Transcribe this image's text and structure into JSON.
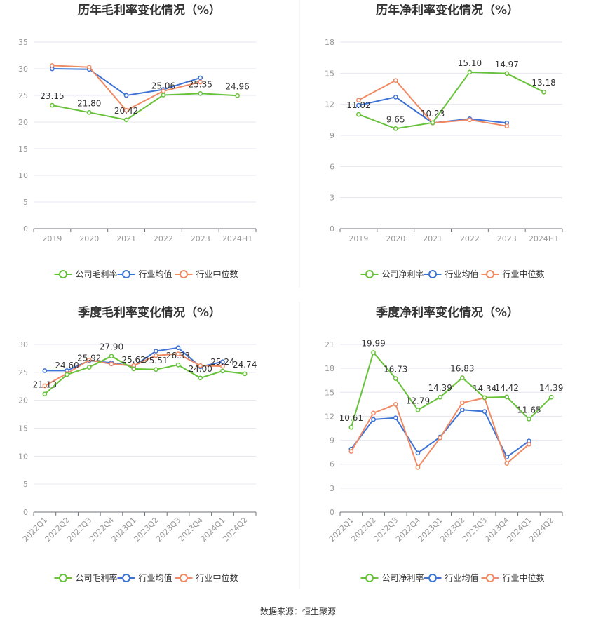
{
  "colors": {
    "company": "#67c23a",
    "industry_avg": "#3d73d6",
    "industry_median": "#f08a64"
  },
  "legend_labels_gross": [
    "公司毛利率",
    "行业均值",
    "行业中位数"
  ],
  "legend_labels_net": [
    "公司净利率",
    "行业均值",
    "行业中位数"
  ],
  "source_text": "数据来源：恒生聚源",
  "chart_data": [
    {
      "type": "line",
      "title": "历年毛利率变化情况（%）",
      "categories": [
        "2019",
        "2020",
        "2021",
        "2022",
        "2023",
        "2024H1"
      ],
      "yticks": [
        0,
        5,
        10,
        15,
        20,
        25,
        30,
        35
      ],
      "ylim": [
        0,
        35
      ],
      "rotate_xticks": false,
      "legend": "bottom-center",
      "grid": true,
      "series": [
        {
          "name": "公司毛利率",
          "values": [
            23.15,
            21.8,
            20.42,
            25.06,
            25.35,
            24.96
          ],
          "labels": [
            "23.15",
            "21.80",
            "20.42",
            "25.06",
            "25.35",
            "24.96"
          ]
        },
        {
          "name": "行业均值",
          "values": [
            30.0,
            29.9,
            25.0,
            26.1,
            28.3,
            null
          ]
        },
        {
          "name": "行业中位数",
          "values": [
            30.6,
            30.3,
            22.2,
            25.8,
            27.5,
            null
          ]
        }
      ]
    },
    {
      "type": "line",
      "title": "历年净利率变化情况（%）",
      "categories": [
        "2019",
        "2020",
        "2021",
        "2022",
        "2023",
        "2024H1"
      ],
      "yticks": [
        0,
        3,
        6,
        9,
        12,
        15,
        18
      ],
      "ylim": [
        0,
        18
      ],
      "rotate_xticks": false,
      "legend": "bottom-center",
      "grid": true,
      "series": [
        {
          "name": "公司净利率",
          "values": [
            11.02,
            9.65,
            10.23,
            15.1,
            14.97,
            13.18
          ],
          "labels": [
            "11.02",
            "9.65",
            "10.23",
            "15.10",
            "14.97",
            "13.18"
          ]
        },
        {
          "name": "行业均值",
          "values": [
            11.9,
            12.7,
            10.2,
            10.6,
            10.2,
            null
          ]
        },
        {
          "name": "行业中位数",
          "values": [
            12.4,
            14.3,
            10.2,
            10.5,
            9.9,
            null
          ]
        }
      ]
    },
    {
      "type": "line",
      "title": "季度毛利率变化情况（%）",
      "categories": [
        "2022Q1",
        "2022Q2",
        "2022Q3",
        "2022Q4",
        "2023Q1",
        "2023Q2",
        "2023Q3",
        "2023Q4",
        "2024Q1",
        "2024Q2"
      ],
      "yticks": [
        0,
        5,
        10,
        15,
        20,
        25,
        30
      ],
      "ylim": [
        0,
        30
      ],
      "rotate_xticks": true,
      "legend": "bottom-center",
      "grid": true,
      "series": [
        {
          "name": "公司毛利率",
          "values": [
            21.13,
            24.6,
            25.92,
            27.9,
            25.62,
            25.51,
            26.33,
            24.0,
            25.24,
            24.74
          ],
          "labels": [
            "21.13",
            "24.60",
            "25.92",
            "27.90",
            "25.62",
            "25.51",
            "26.33",
            "24.00",
            "25.24",
            "24.74"
          ]
        },
        {
          "name": "行业均值",
          "values": [
            25.3,
            25.3,
            27.1,
            26.7,
            26.1,
            28.8,
            29.4,
            26.0,
            26.9,
            null
          ]
        },
        {
          "name": "行业中位数",
          "values": [
            22.6,
            24.8,
            27.2,
            26.5,
            26.2,
            28.0,
            28.3,
            26.2,
            26.1,
            null
          ]
        }
      ]
    },
    {
      "type": "line",
      "title": "季度净利率变化情况（%）",
      "categories": [
        "2022Q1",
        "2022Q2",
        "2022Q3",
        "2022Q4",
        "2023Q1",
        "2023Q2",
        "2023Q3",
        "2023Q4",
        "2024Q1",
        "2024Q2"
      ],
      "yticks": [
        0,
        3,
        6,
        9,
        12,
        15,
        18,
        21
      ],
      "ylim": [
        0,
        21
      ],
      "rotate_xticks": true,
      "legend": "bottom-center",
      "grid": true,
      "series": [
        {
          "name": "公司净利率",
          "values": [
            10.61,
            19.99,
            16.73,
            12.79,
            14.39,
            16.83,
            14.34,
            14.42,
            11.65,
            14.39
          ],
          "labels": [
            "10.61",
            "19.99",
            "16.73",
            "12.79",
            "14.39",
            "16.83",
            "14.34",
            "14.42",
            "11.65",
            "14.39"
          ]
        },
        {
          "name": "行业均值",
          "values": [
            7.9,
            11.6,
            11.8,
            7.4,
            9.4,
            12.8,
            12.6,
            6.9,
            8.9,
            null
          ]
        },
        {
          "name": "行业中位数",
          "values": [
            7.6,
            12.4,
            13.5,
            5.6,
            9.3,
            13.7,
            14.3,
            6.1,
            8.5,
            null
          ]
        }
      ]
    }
  ]
}
